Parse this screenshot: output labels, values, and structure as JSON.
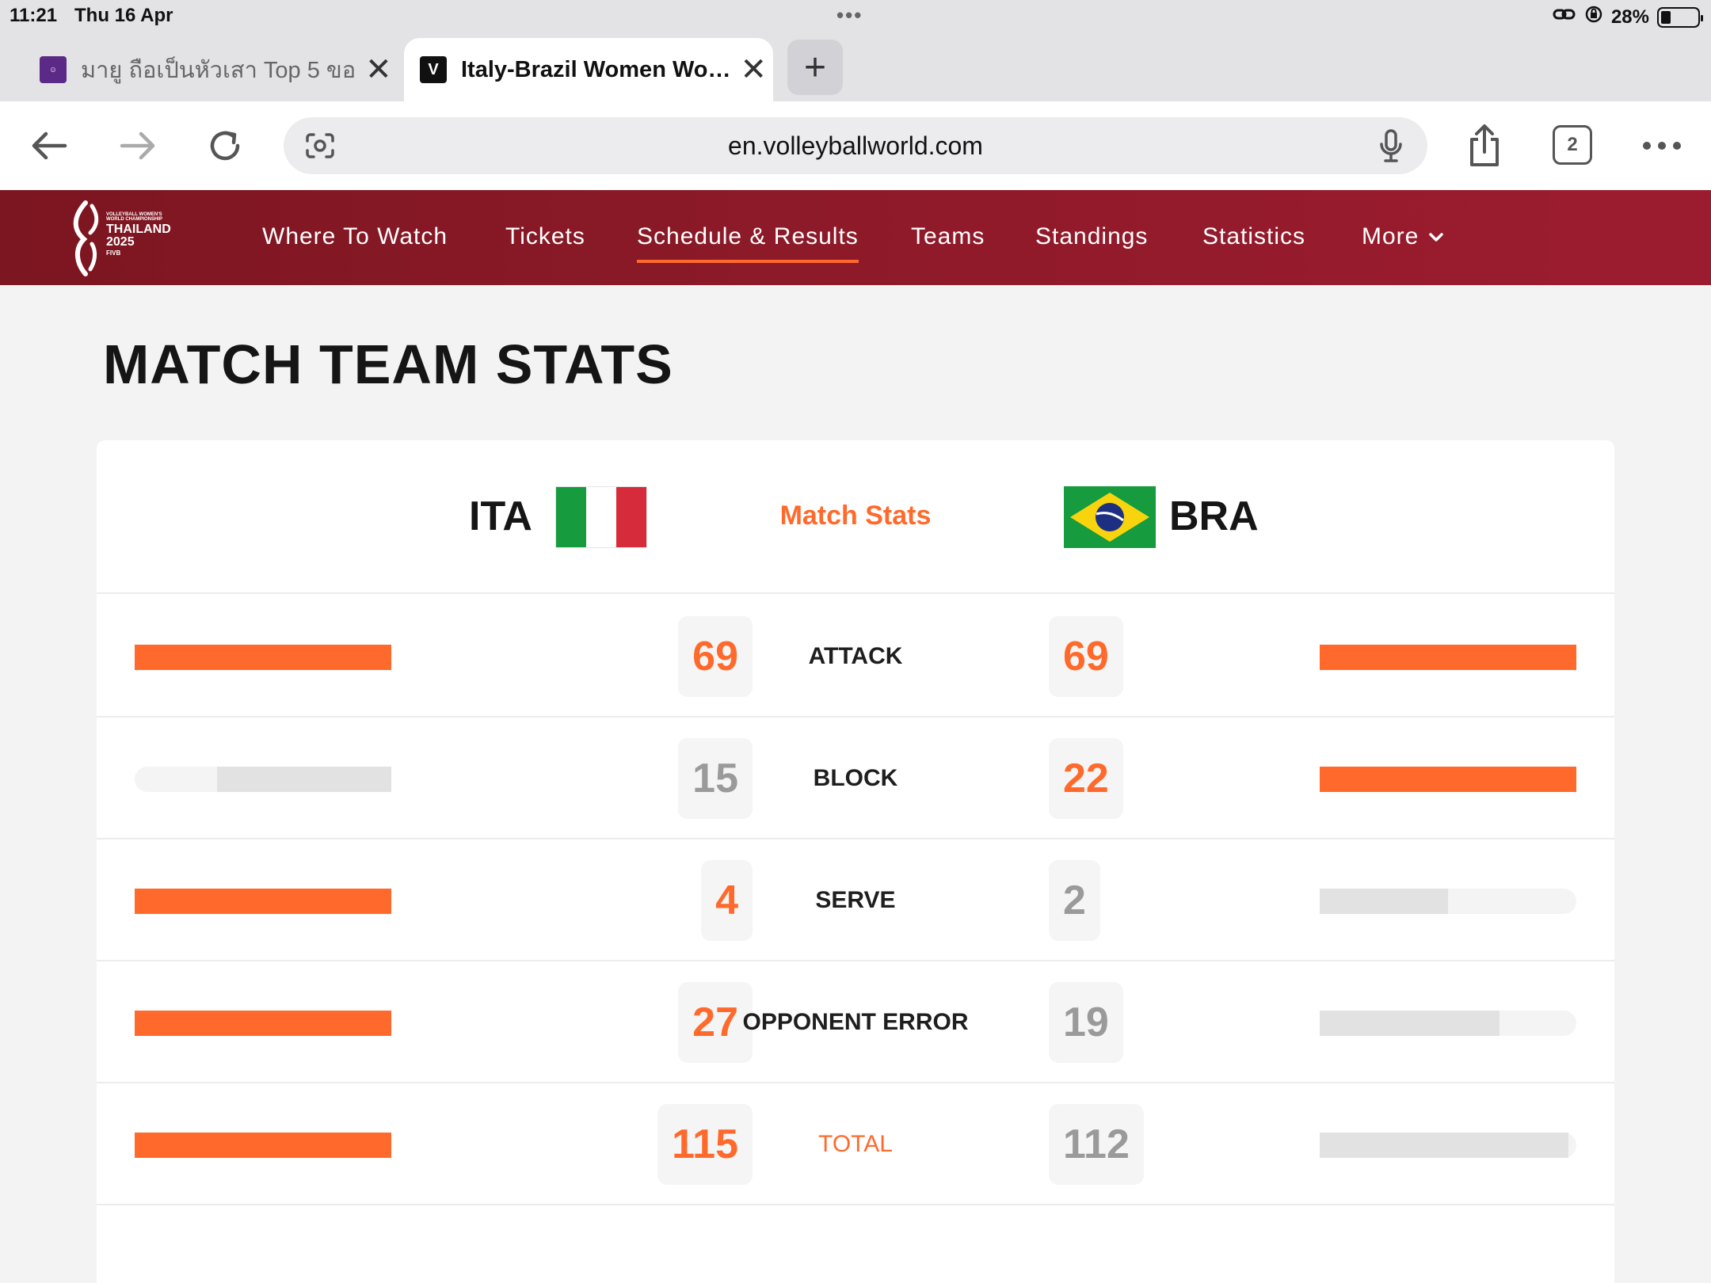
{
  "status_bar": {
    "time": "11:21",
    "date": "Thu 16 Apr",
    "battery": "28%",
    "battery_level": 0.28
  },
  "tabs": [
    {
      "title": "มายู ถือเป็นหัวเสา Top 5 ขอ",
      "favicon": "pantip",
      "active": false
    },
    {
      "title": "Italy-Brazil Women Wo…",
      "favicon": "vw-logo",
      "active": true
    }
  ],
  "new_tab_label": "+",
  "address": {
    "url": "en.volleyballworld.com",
    "tab_count": "2"
  },
  "site": {
    "logo_lines": [
      "VOLLEYBALL WOMEN'S",
      "WORLD CHAMPIONSHIP",
      "THAILAND",
      "2025",
      "FIVB"
    ],
    "nav": [
      {
        "label": "Where To Watch"
      },
      {
        "label": "Tickets"
      },
      {
        "label": "Schedule & Results",
        "active": true
      },
      {
        "label": "Teams"
      },
      {
        "label": "Standings"
      },
      {
        "label": "Statistics"
      },
      {
        "label": "More",
        "dropdown": true
      }
    ]
  },
  "page_title": "MATCH TEAM STATS",
  "match": {
    "home": {
      "code": "ITA",
      "flag": "italy-flag"
    },
    "away": {
      "code": "BRA",
      "flag": "brazil-flag"
    },
    "center_label": "Match Stats",
    "stats": [
      {
        "label": "ATTACK",
        "home": "69",
        "away": "69",
        "home_bar": 1.0,
        "away_bar": 1.0,
        "home_leads": true,
        "away_leads": true
      },
      {
        "label": "BLOCK",
        "home": "15",
        "away": "22",
        "home_bar": 0.68,
        "away_bar": 1.0,
        "home_leads": false,
        "away_leads": true
      },
      {
        "label": "SERVE",
        "home": "4",
        "away": "2",
        "home_bar": 1.0,
        "away_bar": 0.5,
        "home_leads": true,
        "away_leads": false
      },
      {
        "label": "OPPONENT ERROR",
        "home": "27",
        "away": "19",
        "home_bar": 1.0,
        "away_bar": 0.7,
        "home_leads": true,
        "away_leads": false
      },
      {
        "label": "TOTAL",
        "home": "115",
        "away": "112",
        "home_bar": 1.0,
        "away_bar": 0.97,
        "home_leads": true,
        "away_leads": false,
        "is_total": true
      }
    ]
  },
  "colors": {
    "accent": "#ff6a2c",
    "nav_bg": "#8e1a29",
    "bar_muted": "#e2e2e2",
    "bar_track": "#f4f4f4"
  }
}
